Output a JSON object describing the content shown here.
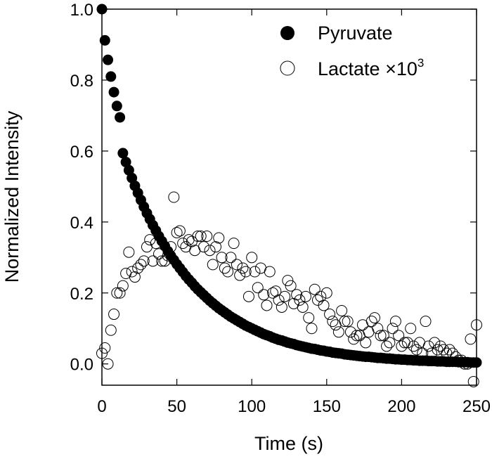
{
  "chart_data": {
    "type": "scatter",
    "xlabel": "Time (s)",
    "ylabel": "Normalized Intensity",
    "xlim": [
      0,
      250
    ],
    "ylim": [
      -0.06,
      1.0
    ],
    "x_ticks": [
      0,
      50,
      100,
      150,
      200,
      250
    ],
    "x_tick_labels": [
      "0",
      "50",
      "100",
      "150",
      "200",
      "250"
    ],
    "y_ticks": [
      0.0,
      0.2,
      0.4,
      0.6,
      0.8,
      1.0
    ],
    "y_tick_labels": [
      "0.0",
      "0.2",
      "0.4",
      "0.6",
      "0.8",
      "1.0"
    ],
    "grid": false,
    "legend_position": "top-right",
    "series": [
      {
        "name": "Pyruvate",
        "marker": "filled-circle",
        "color": "#000000",
        "x": [
          0,
          2,
          4,
          6,
          8,
          10,
          12,
          14,
          16,
          18,
          20,
          22,
          24,
          26,
          28,
          30,
          32,
          34,
          36,
          38,
          40,
          42,
          44,
          46,
          48,
          50,
          52,
          54,
          56,
          58,
          60,
          62,
          64,
          66,
          68,
          70,
          72,
          74,
          76,
          78,
          80,
          82,
          84,
          86,
          88,
          90,
          92,
          94,
          96,
          98,
          100,
          102,
          104,
          106,
          108,
          110,
          112,
          114,
          116,
          118,
          120,
          122,
          124,
          126,
          128,
          130,
          132,
          134,
          136,
          138,
          140,
          142,
          144,
          146,
          148,
          150,
          152,
          154,
          156,
          158,
          160,
          162,
          164,
          166,
          168,
          170,
          172,
          174,
          176,
          178,
          180,
          182,
          184,
          186,
          188,
          190,
          192,
          194,
          196,
          198,
          200,
          202,
          204,
          206,
          208,
          210,
          212,
          214,
          216,
          218,
          220,
          222,
          224,
          226,
          228,
          230,
          232,
          234,
          236,
          238,
          240,
          242,
          244,
          246,
          248,
          250
        ],
        "y": [
          1.0,
          0.912,
          0.857,
          0.81,
          0.766,
          0.727,
          0.695,
          0.594,
          0.569,
          0.546,
          0.524,
          0.502,
          0.482,
          0.462,
          0.443,
          0.425,
          0.408,
          0.391,
          0.376,
          0.36,
          0.346,
          0.332,
          0.318,
          0.305,
          0.293,
          0.281,
          0.27,
          0.259,
          0.248,
          0.238,
          0.229,
          0.219,
          0.21,
          0.202,
          0.194,
          0.186,
          0.178,
          0.171,
          0.164,
          0.157,
          0.151,
          0.145,
          0.139,
          0.133,
          0.128,
          0.123,
          0.118,
          0.113,
          0.108,
          0.104,
          0.1,
          0.096,
          0.092,
          0.088,
          0.084,
          0.081,
          0.078,
          0.074,
          0.071,
          0.068,
          0.066,
          0.063,
          0.06,
          0.058,
          0.056,
          0.053,
          0.051,
          0.049,
          0.047,
          0.045,
          0.043,
          0.042,
          0.04,
          0.038,
          0.037,
          0.035,
          0.034,
          0.032,
          0.031,
          0.03,
          0.029,
          0.027,
          0.026,
          0.025,
          0.024,
          0.023,
          0.022,
          0.021,
          0.02,
          0.02,
          0.019,
          0.018,
          0.017,
          0.017,
          0.016,
          0.015,
          0.015,
          0.014,
          0.013,
          0.013,
          0.012,
          0.012,
          0.011,
          0.011,
          0.01,
          0.01,
          0.009,
          0.009,
          0.009,
          0.008,
          0.008,
          0.008,
          0.007,
          0.007,
          0.007,
          0.006,
          0.006,
          0.006,
          0.006,
          0.005,
          0.005,
          0.005,
          0.005,
          0.004,
          0.004,
          0.004
        ]
      },
      {
        "name": "Lactate ×10",
        "name_superscript": "3",
        "marker": "open-circle",
        "color": "#000000",
        "x": [
          0,
          2,
          4,
          6,
          8,
          10,
          12,
          14,
          16,
          18,
          20,
          22,
          24,
          26,
          28,
          30,
          32,
          34,
          36,
          38,
          40,
          42,
          44,
          46,
          48,
          50,
          52,
          54,
          56,
          58,
          60,
          62,
          64,
          66,
          68,
          70,
          72,
          74,
          76,
          78,
          80,
          82,
          84,
          86,
          88,
          90,
          92,
          94,
          96,
          98,
          100,
          102,
          104,
          106,
          108,
          110,
          112,
          114,
          116,
          118,
          120,
          122,
          124,
          126,
          128,
          130,
          132,
          134,
          136,
          138,
          140,
          142,
          144,
          146,
          148,
          150,
          152,
          154,
          156,
          158,
          160,
          162,
          164,
          166,
          168,
          170,
          172,
          174,
          176,
          178,
          180,
          182,
          184,
          186,
          188,
          190,
          192,
          194,
          196,
          198,
          200,
          202,
          204,
          206,
          208,
          210,
          212,
          214,
          216,
          218,
          220,
          222,
          224,
          226,
          228,
          230,
          232,
          234,
          236,
          238,
          240,
          242,
          244,
          246,
          248,
          250
        ],
        "y": [
          0.03,
          0.045,
          0.0,
          0.095,
          0.14,
          0.2,
          0.2,
          0.22,
          0.255,
          0.315,
          0.26,
          0.245,
          0.27,
          0.28,
          0.29,
          0.33,
          0.35,
          0.29,
          0.34,
          0.31,
          0.29,
          0.29,
          0.305,
          0.33,
          0.47,
          0.37,
          0.375,
          0.34,
          0.33,
          0.35,
          0.345,
          0.32,
          0.36,
          0.36,
          0.33,
          0.36,
          0.32,
          0.28,
          0.33,
          0.355,
          0.3,
          0.27,
          0.26,
          0.3,
          0.34,
          0.28,
          0.25,
          0.27,
          0.26,
          0.19,
          0.3,
          0.26,
          0.215,
          0.27,
          0.195,
          0.165,
          0.26,
          0.2,
          0.205,
          0.18,
          0.16,
          0.19,
          0.235,
          0.22,
          0.17,
          0.195,
          0.18,
          0.16,
          0.19,
          0.13,
          0.1,
          0.21,
          0.18,
          0.19,
          0.165,
          0.2,
          0.14,
          0.12,
          0.11,
          0.09,
          0.15,
          0.12,
          0.12,
          0.09,
          0.07,
          0.08,
          0.08,
          0.11,
          0.06,
          0.09,
          0.12,
          0.13,
          0.1,
          0.08,
          0.08,
          0.05,
          0.06,
          0.1,
          0.12,
          0.08,
          0.05,
          0.06,
          0.06,
          0.1,
          0.05,
          0.04,
          0.06,
          0.03,
          0.12,
          0.05,
          0.03,
          0.06,
          0.04,
          0.05,
          0.04,
          0.03,
          0.04,
          0.03,
          0.02,
          0.01,
          0.01,
          0.0,
          0.0,
          0.07,
          -0.05,
          0.11
        ]
      }
    ]
  }
}
